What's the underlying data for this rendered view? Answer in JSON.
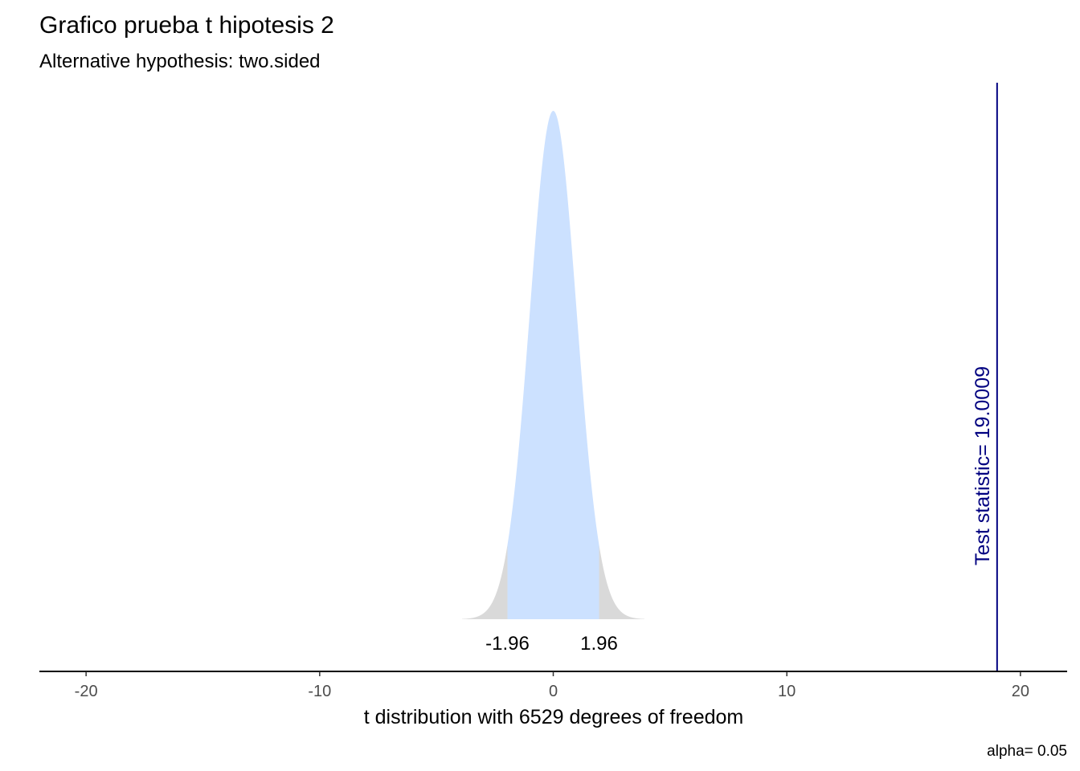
{
  "chart_data": {
    "type": "area",
    "title": "Grafico prueba t hipotesis 2",
    "subtitle": "Alternative hypothesis: two.sided",
    "xlabel": "t distribution with 6529 degrees of freedom",
    "caption": "alpha= 0.05",
    "distribution": {
      "name": "t",
      "df": 6529
    },
    "xlim": [
      -22,
      22
    ],
    "x_ticks": [
      -20,
      -10,
      0,
      10,
      20
    ],
    "x_tick_labels": [
      "-20",
      "-10",
      "0",
      "10",
      "20"
    ],
    "curve_range": [
      -3.9,
      3.9
    ],
    "critical_values": [
      -1.96,
      1.96
    ],
    "critical_labels": [
      "-1.96",
      "1.96"
    ],
    "test_statistic": 19.0009,
    "test_statistic_label": "Test statistic= 19.0009",
    "grid": false,
    "colors": {
      "acceptance_region": "#cce1ff",
      "rejection_region": "#d9d9d9",
      "test_statistic_line": "#000080",
      "axis": "#000000",
      "tick_labels": "#4d4d4d"
    }
  }
}
